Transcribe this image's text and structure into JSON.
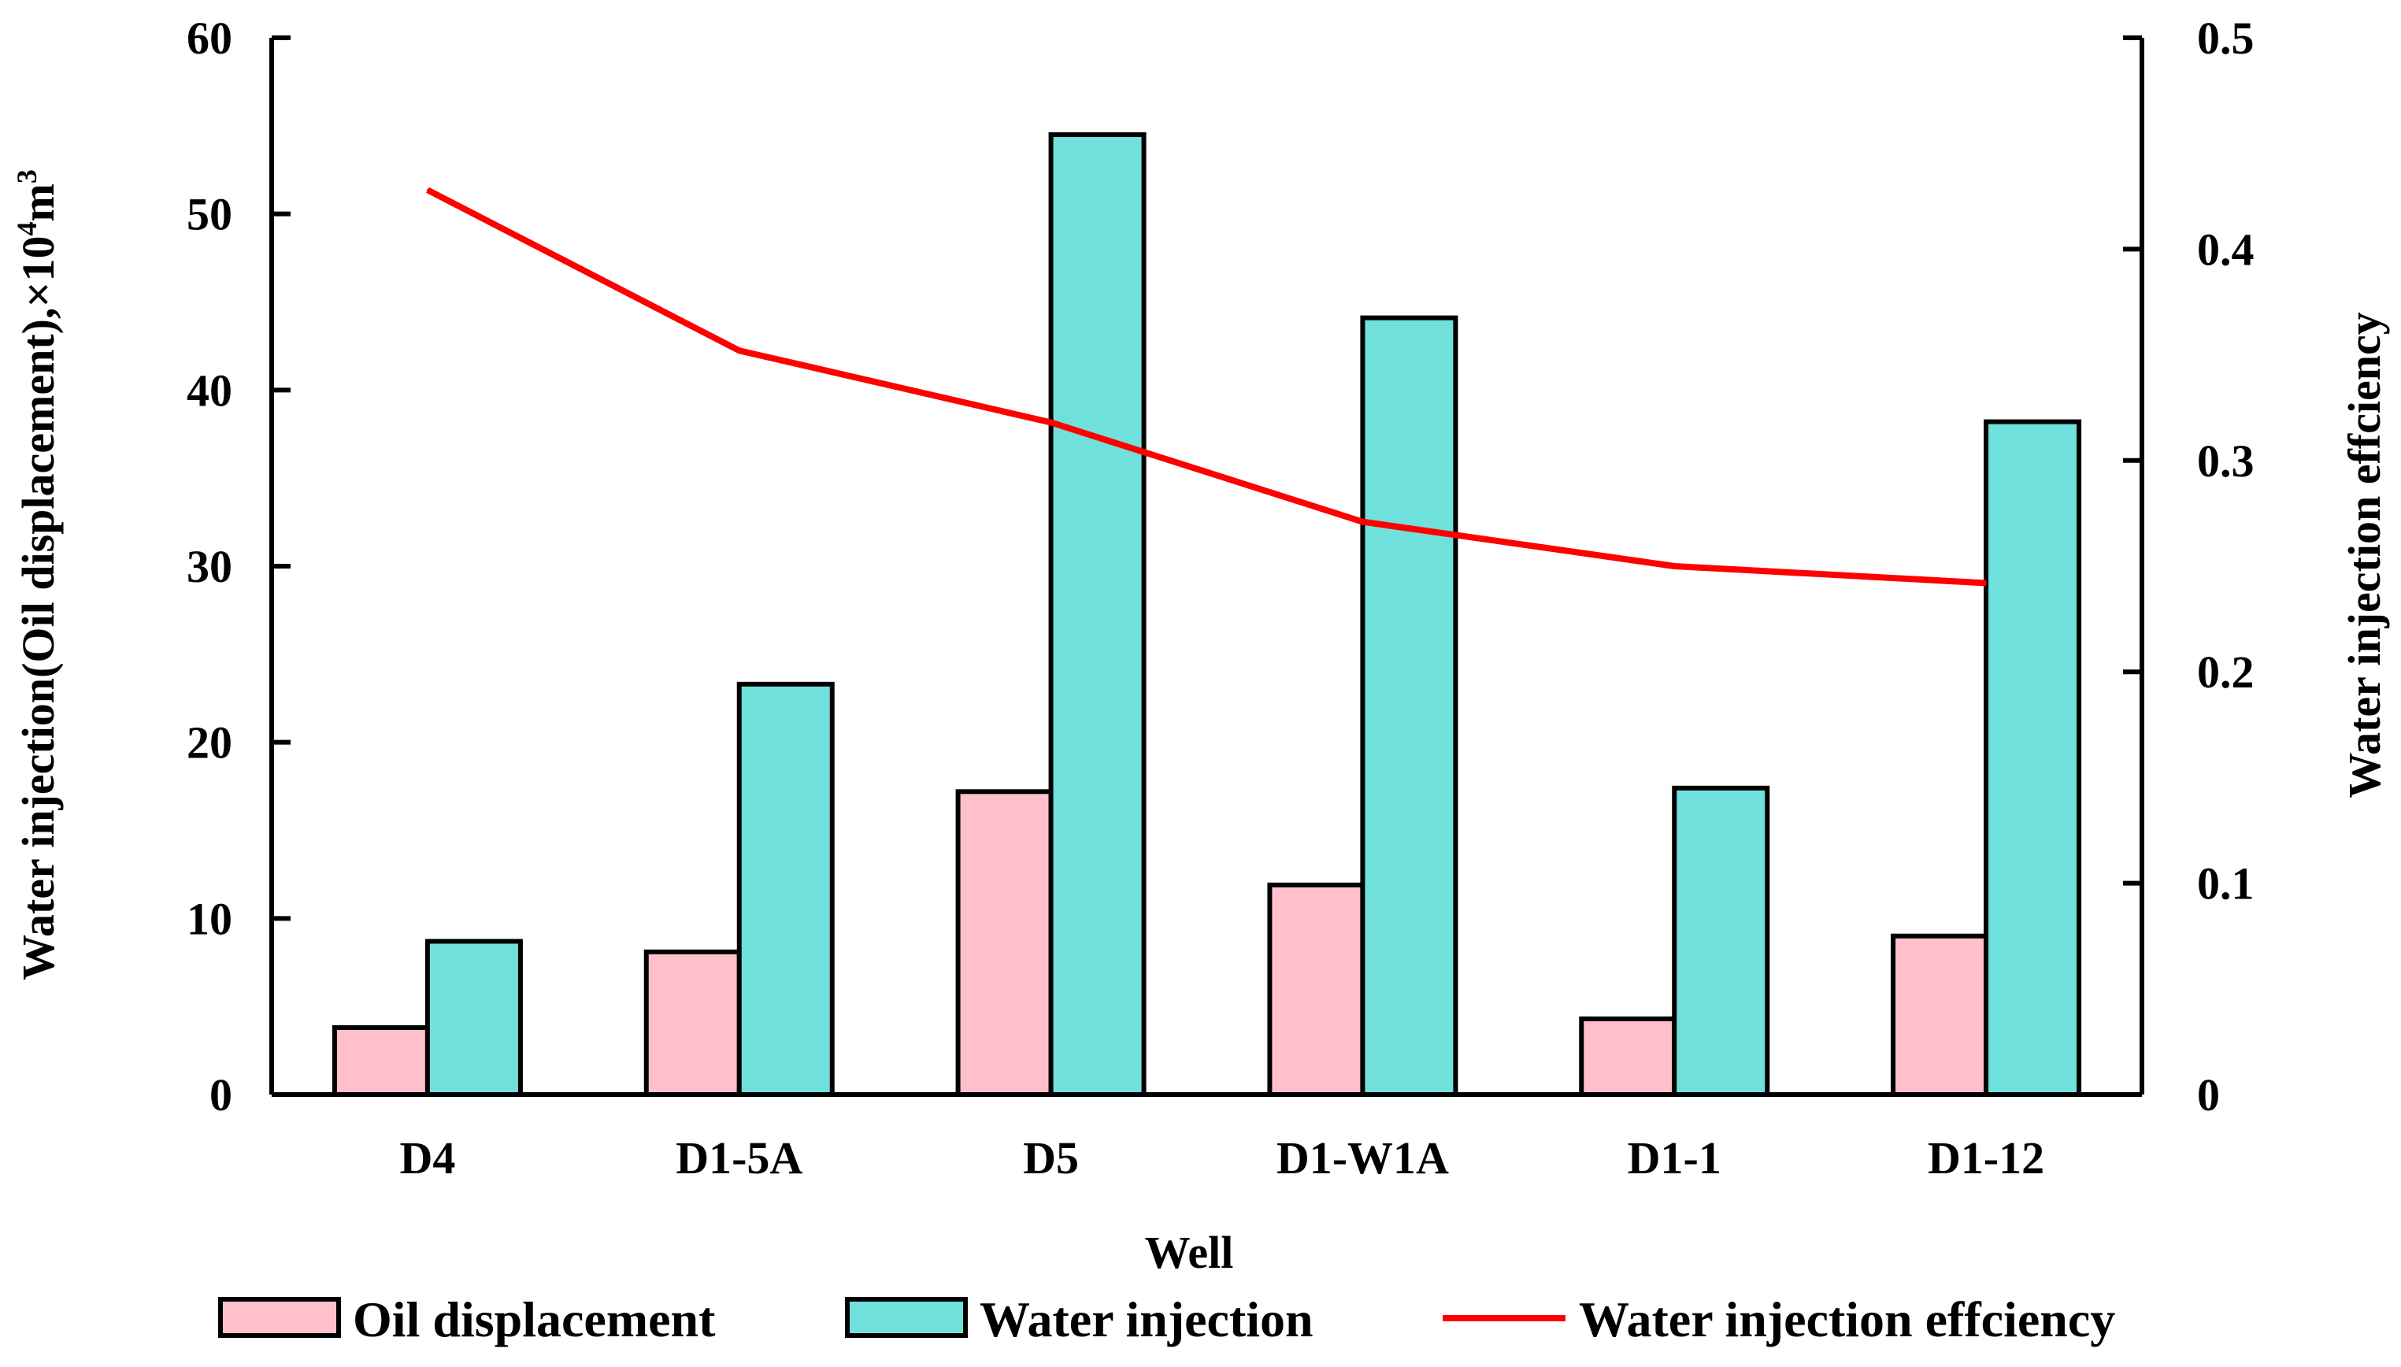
{
  "chart_data": {
    "type": "bar",
    "categories": [
      "D4",
      "D1-5A",
      "D5",
      "D1-W1A",
      "D1-1",
      "D1-12"
    ],
    "series": [
      {
        "name": "Oil displacement",
        "kind": "bar",
        "axis": "left",
        "color": "#FFC0CB",
        "values": [
          3.8,
          8.1,
          17.2,
          11.9,
          4.3,
          9.0
        ]
      },
      {
        "name": "Water injection",
        "kind": "bar",
        "axis": "left",
        "color": "#70E0DC",
        "values": [
          8.7,
          23.3,
          54.5,
          44.1,
          17.4,
          38.2
        ]
      },
      {
        "name": "Water injection effciency",
        "kind": "line",
        "axis": "right",
        "color": "#FF0000",
        "values": [
          0.428,
          0.352,
          0.318,
          0.271,
          0.25,
          0.242
        ]
      }
    ],
    "xlabel": "Well",
    "ylabel": "Water injection(Oil displacement),×10",
    "ylabel_sup": "4",
    "ylabel_unit": "m",
    "ylabel_unit_sup": "3",
    "y2label": "Water injection effciency",
    "ylim": [
      0,
      60
    ],
    "y2lim": [
      0,
      0.5
    ],
    "yticks": [
      "0",
      "10",
      "20",
      "30",
      "40",
      "50",
      "60"
    ],
    "y2ticks": [
      "0",
      "0.1",
      "0.2",
      "0.3",
      "0.4",
      "0.5"
    ],
    "legend_position": "bottom",
    "grid": false
  }
}
